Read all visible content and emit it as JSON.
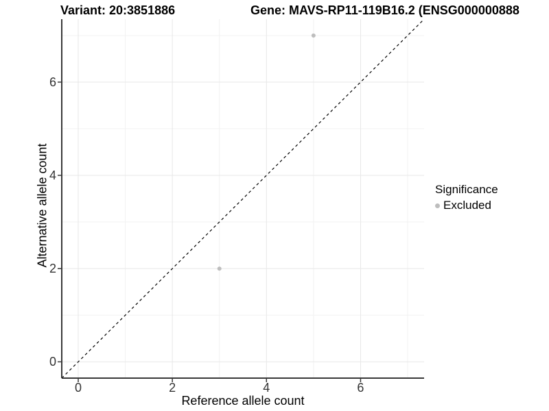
{
  "titles": {
    "variant": "Variant: 20:3851886",
    "gene": "Gene: MAVS-RP11-119B16.2 (ENSG000000888"
  },
  "legend": {
    "title": "Significance",
    "items": [
      {
        "label": "Excluded",
        "color": "#bdbdbd",
        "marker": "circle-icon"
      }
    ]
  },
  "chart_data": {
    "type": "scatter",
    "xlabel": "Reference allele count",
    "ylabel": "Alternative allele count",
    "xlim": [
      -0.35,
      7.35
    ],
    "ylim": [
      -0.35,
      7.35
    ],
    "x_major_ticks": [
      0,
      2,
      4,
      6
    ],
    "x_minor_ticks": [
      1,
      3,
      5,
      7
    ],
    "y_major_ticks": [
      0,
      2,
      4,
      6
    ],
    "y_minor_ticks": [
      1,
      3,
      5,
      7
    ],
    "grid": true,
    "legend_position": "right",
    "series": [
      {
        "name": "Excluded",
        "color": "#bdbdbd",
        "marker_radius": 3,
        "points": [
          {
            "x": 5,
            "y": 7
          },
          {
            "x": 3,
            "y": 2
          }
        ]
      }
    ],
    "reference_line": {
      "type": "identity",
      "style": "dashed",
      "color": "#000000"
    }
  },
  "colors": {
    "grid_major": "#e7e7e7",
    "grid_minor": "#f2f2f2",
    "axis_line": "#383838",
    "tick": "#383838",
    "text": "#333333"
  }
}
